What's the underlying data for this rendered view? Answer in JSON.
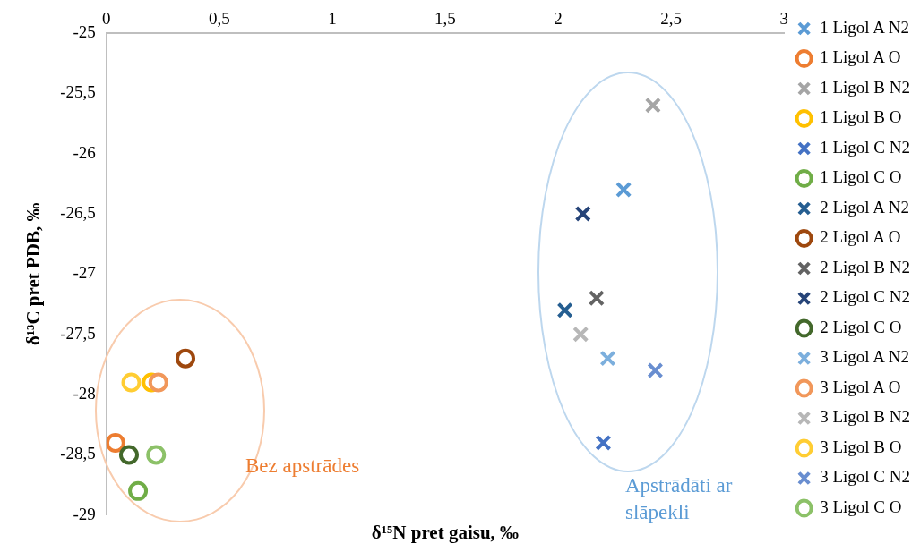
{
  "chart_data": {
    "type": "scatter",
    "xlabel": "δ¹⁵N pret gaisu, ‰",
    "ylabel": "δ¹³C pret PDB, ‰",
    "xlim": [
      0,
      3
    ],
    "xticks": [
      {
        "value": 0,
        "label": "0"
      },
      {
        "value": 0.5,
        "label": "0,5"
      },
      {
        "value": 1,
        "label": "1"
      },
      {
        "value": 1.5,
        "label": "1,5"
      },
      {
        "value": 2,
        "label": "2"
      },
      {
        "value": 2.5,
        "label": "2,5"
      },
      {
        "value": 3,
        "label": "3"
      }
    ],
    "ylim": [
      -29,
      -25
    ],
    "yticks": [
      {
        "value": -29,
        "label": "-29"
      },
      {
        "value": -28.5,
        "label": "-28,5"
      },
      {
        "value": -28,
        "label": "-28"
      },
      {
        "value": -27.5,
        "label": "-27,5"
      },
      {
        "value": -27,
        "label": "-27"
      },
      {
        "value": -26.5,
        "label": "-26,5"
      },
      {
        "value": -26,
        "label": "-26"
      },
      {
        "value": -25.5,
        "label": "-25,5"
      },
      {
        "value": -25,
        "label": "-25"
      }
    ],
    "grid": false,
    "legend": "right",
    "annotations": [
      "Bez apstrādes",
      "Apstrādāti ar slāpekli"
    ],
    "series": [
      {
        "name": "1 Ligol A N2",
        "color": "#5b9bd5",
        "marker": "cross",
        "x": [
          2.29
        ],
        "values": [
          -26.3
        ]
      },
      {
        "name": "1 Ligol A O",
        "color": "#ed7d31",
        "marker": "circle",
        "x": [
          0.04
        ],
        "values": [
          -28.4
        ]
      },
      {
        "name": "1 Ligol B N2",
        "color": "#a5a5a5",
        "marker": "cross",
        "x": [
          2.42
        ],
        "values": [
          -25.6
        ]
      },
      {
        "name": "1 Ligol B O",
        "color": "#ffc000",
        "marker": "circle",
        "x": [
          0.2
        ],
        "values": [
          -27.9
        ]
      },
      {
        "name": "1 Ligol C N2",
        "color": "#4472c4",
        "marker": "cross",
        "x": [
          2.2
        ],
        "values": [
          -28.4
        ]
      },
      {
        "name": "1 Ligol C O",
        "color": "#70ad47",
        "marker": "circle",
        "x": [
          0.14
        ],
        "values": [
          -28.8
        ]
      },
      {
        "name": "2 Ligol A N2",
        "color": "#255e91",
        "marker": "cross",
        "x": [
          2.03
        ],
        "values": [
          -27.3
        ]
      },
      {
        "name": "2 Ligol A O",
        "color": "#9e480e",
        "marker": "circle",
        "x": [
          0.35
        ],
        "values": [
          -27.7
        ]
      },
      {
        "name": "2 Ligol B N2",
        "color": "#636363",
        "marker": "cross",
        "x": [
          2.17
        ],
        "values": [
          -27.2
        ]
      },
      {
        "name": "2 Ligol C N2",
        "color": "#264478",
        "marker": "cross",
        "x": [
          2.11
        ],
        "values": [
          -26.5
        ]
      },
      {
        "name": "2 Ligol C O",
        "color": "#43682b",
        "marker": "circle",
        "x": [
          0.1
        ],
        "values": [
          -28.5
        ]
      },
      {
        "name": "3 Ligol A N2",
        "color": "#7cafdd",
        "marker": "cross",
        "x": [
          2.22
        ],
        "values": [
          -27.7
        ]
      },
      {
        "name": "3 Ligol A O",
        "color": "#f1975a",
        "marker": "circle",
        "x": [
          0.23
        ],
        "values": [
          -27.9
        ]
      },
      {
        "name": "3 Ligol B N2",
        "color": "#b7b7b7",
        "marker": "cross",
        "x": [
          2.1
        ],
        "values": [
          -27.5
        ]
      },
      {
        "name": "3 Ligol B O",
        "color": "#ffcd33",
        "marker": "circle",
        "x": [
          0.11
        ],
        "values": [
          -27.9
        ]
      },
      {
        "name": "3 Ligol C N2",
        "color": "#698ed0",
        "marker": "cross",
        "x": [
          2.43
        ],
        "values": [
          -27.8
        ]
      },
      {
        "name": "3 Ligol C O",
        "color": "#8cc168",
        "marker": "circle",
        "x": [
          0.22
        ],
        "values": [
          -28.5
        ]
      }
    ]
  }
}
